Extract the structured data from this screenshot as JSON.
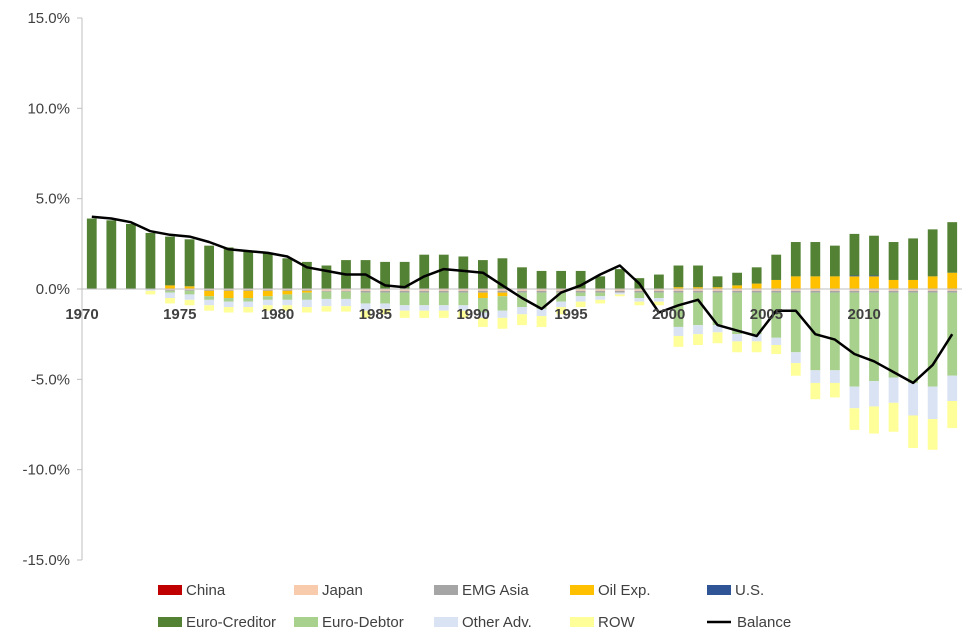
{
  "chart_data": {
    "type": "bar",
    "stacked": true,
    "title": "",
    "xlabel": "",
    "ylabel": "",
    "ylim": [
      -15,
      15
    ],
    "y_ticks": [
      "15.0%",
      "10.0%",
      "5.0%",
      "0.0%",
      "-5.0%",
      "-10.0%",
      "-15.0%"
    ],
    "y_tick_values": [
      15,
      10,
      5,
      0,
      -5,
      -10,
      -15
    ],
    "x_tick_labels": [
      "1970",
      "1975",
      "1980",
      "1985",
      "1990",
      "1995",
      "2000",
      "2005",
      "2010"
    ],
    "x_tick_years": [
      1970,
      1975,
      1980,
      1985,
      1990,
      1995,
      2000,
      2005,
      2010
    ],
    "grid": false,
    "legend_position": "bottom",
    "years": [
      1970,
      1971,
      1972,
      1973,
      1974,
      1975,
      1976,
      1977,
      1978,
      1979,
      1980,
      1981,
      1982,
      1983,
      1984,
      1985,
      1986,
      1987,
      1988,
      1989,
      1990,
      1991,
      1992,
      1993,
      1994,
      1995,
      1996,
      1997,
      1998,
      1999,
      2000,
      2001,
      2002,
      2003,
      2004,
      2005,
      2006,
      2007,
      2008,
      2009,
      2010,
      2011,
      2012,
      2013,
      2014
    ],
    "series": [
      {
        "name": "China",
        "color": "#c00000",
        "values": [
          0,
          0,
          0,
          0,
          0,
          0,
          0,
          0,
          0,
          0,
          0,
          0,
          0,
          0,
          0,
          0,
          0,
          0,
          0,
          0,
          0,
          0,
          0,
          0,
          0,
          0,
          0,
          0,
          0,
          0,
          0,
          0,
          0,
          0,
          0,
          0,
          0,
          0,
          0,
          0,
          0,
          0,
          0,
          0,
          0
        ]
      },
      {
        "name": "Japan",
        "color": "#f8cbad",
        "values": [
          0,
          0,
          0,
          0,
          -0.05,
          -0.05,
          -0.05,
          -0.05,
          -0.05,
          -0.05,
          -0.05,
          -0.05,
          -0.1,
          -0.1,
          -0.1,
          -0.1,
          -0.1,
          -0.1,
          -0.1,
          -0.1,
          -0.1,
          -0.1,
          -0.1,
          -0.1,
          -0.1,
          -0.1,
          -0.1,
          -0.1,
          -0.1,
          -0.1,
          -0.1,
          -0.1,
          -0.1,
          -0.1,
          -0.1,
          -0.1,
          -0.1,
          -0.1,
          -0.1,
          -0.1,
          -0.1,
          -0.1,
          -0.1,
          -0.1,
          -0.1
        ]
      },
      {
        "name": "EMG Asia",
        "color": "#a5a5a5",
        "values": [
          0,
          0,
          0,
          0,
          -0.05,
          -0.05,
          -0.05,
          -0.05,
          -0.05,
          -0.05,
          -0.05,
          -0.05,
          -0.05,
          -0.05,
          -0.1,
          -0.1,
          -0.1,
          -0.1,
          -0.1,
          -0.1,
          -0.1,
          -0.1,
          -0.1,
          -0.1,
          -0.1,
          -0.1,
          -0.1,
          -0.1,
          -0.1,
          -0.1,
          -0.1,
          -0.1,
          -0.1,
          -0.1,
          -0.1,
          -0.1,
          -0.1,
          -0.1,
          -0.1,
          -0.1,
          -0.1,
          -0.1,
          -0.1,
          -0.1,
          -0.1
        ]
      },
      {
        "name": "Oil Exp.",
        "color": "#ffc000",
        "values": [
          0,
          0,
          0,
          0,
          0.2,
          0.15,
          -0.3,
          -0.4,
          -0.4,
          -0.3,
          -0.2,
          -0.1,
          0,
          0,
          0,
          0,
          0,
          0,
          0,
          0,
          -0.3,
          -0.2,
          0,
          0,
          0,
          0,
          0,
          0,
          0,
          0,
          0.1,
          0.1,
          0.1,
          0.2,
          0.3,
          0.5,
          0.7,
          0.7,
          0.7,
          0.7,
          0.7,
          0.5,
          0.5,
          0.7,
          0.9
        ]
      },
      {
        "name": "U.S.",
        "color": "#2f5597",
        "values": [
          0,
          0,
          0,
          0,
          0,
          0,
          0,
          0,
          0,
          0,
          0,
          0,
          0,
          0,
          0,
          0,
          0,
          0,
          0,
          0,
          0,
          0,
          0,
          0,
          0,
          0,
          0,
          0,
          0,
          0,
          0,
          0,
          0,
          0,
          0,
          0,
          0,
          0,
          0,
          0.05,
          0.05,
          0,
          0,
          0,
          0
        ]
      },
      {
        "name": "Euro-Creditor",
        "color": "#548235",
        "values": [
          3.9,
          3.8,
          3.6,
          3.1,
          2.7,
          2.6,
          2.4,
          2.3,
          2.1,
          2.0,
          1.7,
          1.5,
          1.3,
          1.6,
          1.6,
          1.5,
          1.5,
          1.9,
          1.9,
          1.8,
          1.6,
          1.7,
          1.2,
          1.0,
          1.0,
          1.0,
          0.7,
          1.1,
          0.6,
          0.8,
          1.2,
          1.2,
          0.6,
          0.7,
          0.9,
          1.4,
          1.9,
          1.9,
          1.7,
          2.3,
          2.2,
          2.1,
          2.3,
          2.6,
          2.8
        ]
      },
      {
        "name": "Euro-Debtor",
        "color": "#a9d18e",
        "values": [
          0,
          0,
          0,
          0,
          -0.1,
          -0.2,
          -0.2,
          -0.2,
          -0.2,
          -0.2,
          -0.3,
          -0.4,
          -0.4,
          -0.4,
          -0.6,
          -0.6,
          -0.7,
          -0.7,
          -0.7,
          -0.7,
          -0.8,
          -0.8,
          -0.8,
          -0.9,
          -0.5,
          -0.2,
          -0.2,
          0,
          -0.3,
          -0.3,
          -1.9,
          -1.8,
          -1.8,
          -2.3,
          -2.3,
          -2.5,
          -3.3,
          -4.3,
          -4.3,
          -5.2,
          -4.9,
          -4.7,
          -5.0,
          -5.2,
          -4.6
        ]
      },
      {
        "name": "Other Adv.",
        "color": "#dae3f3",
        "values": [
          0,
          0,
          0,
          -0.1,
          -0.3,
          -0.3,
          -0.3,
          -0.3,
          -0.3,
          -0.3,
          -0.3,
          -0.4,
          -0.4,
          -0.4,
          -0.4,
          -0.3,
          -0.3,
          -0.3,
          -0.3,
          -0.3,
          -0.3,
          -0.4,
          -0.4,
          -0.4,
          -0.3,
          -0.3,
          -0.2,
          -0.1,
          -0.2,
          -0.2,
          -0.5,
          -0.5,
          -0.4,
          -0.4,
          -0.4,
          -0.4,
          -0.6,
          -0.7,
          -0.7,
          -1.2,
          -1.4,
          -1.4,
          -1.8,
          -1.8,
          -1.4
        ]
      },
      {
        "name": "ROW",
        "color": "#ffff99",
        "values": [
          0,
          0,
          0,
          -0.2,
          -0.3,
          -0.3,
          -0.3,
          -0.3,
          -0.3,
          -0.3,
          -0.3,
          -0.3,
          -0.3,
          -0.3,
          -0.4,
          -0.3,
          -0.4,
          -0.4,
          -0.4,
          -0.4,
          -0.5,
          -0.6,
          -0.6,
          -0.6,
          -0.4,
          -0.3,
          -0.2,
          -0.1,
          -0.2,
          -0.2,
          -0.6,
          -0.6,
          -0.6,
          -0.6,
          -0.6,
          -0.5,
          -0.7,
          -0.9,
          -0.8,
          -1.2,
          -1.5,
          -1.6,
          -1.8,
          -1.7,
          -1.5
        ]
      },
      {
        "name": "Balance",
        "color": "#000000",
        "kind": "line",
        "values": [
          4.0,
          3.9,
          3.7,
          3.2,
          3.0,
          2.9,
          2.6,
          2.2,
          2.1,
          2.0,
          1.8,
          1.2,
          1.0,
          0.8,
          0.8,
          0.2,
          0.1,
          0.7,
          1.1,
          1.0,
          0.9,
          0.2,
          -0.5,
          -1.1,
          -0.2,
          0.2,
          0.8,
          1.3,
          0.3,
          -1.3,
          -0.9,
          -0.6,
          -2.0,
          -2.3,
          -2.6,
          -1.2,
          -1.2,
          -2.5,
          -2.8,
          -3.6,
          -4.0,
          -4.6,
          -5.2,
          -4.2,
          -2.5
        ]
      }
    ],
    "legend": [
      [
        "China",
        "Japan",
        "EMG Asia",
        "Oil Exp.",
        "U.S."
      ],
      [
        "Euro-Creditor",
        "Euro-Debtor",
        "Other Adv.",
        "ROW",
        "Balance"
      ]
    ]
  }
}
